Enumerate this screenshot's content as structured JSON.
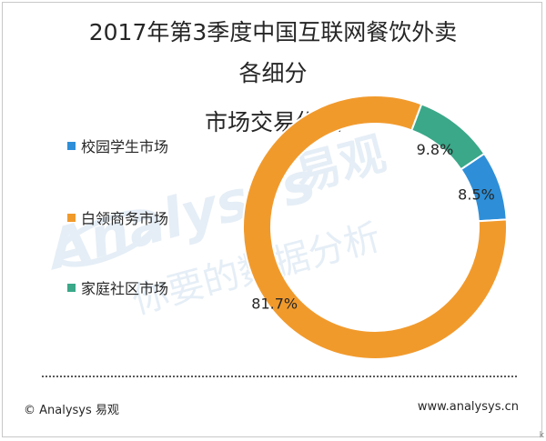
{
  "chart_data": {
    "type": "pie",
    "donut": true,
    "title_lines": [
      "2017年第3季度中国互联网餐饮外卖",
      "各细分",
      "市场交易份额"
    ],
    "categories": [
      "校园学生市场",
      "白领商务市场",
      "家庭社区市场"
    ],
    "values": [
      8.5,
      81.7,
      9.8
    ],
    "value_labels": [
      "8.5%",
      "81.7%",
      "9.8%"
    ],
    "unit": "%",
    "colors": [
      "#2e8fd8",
      "#f19a2c",
      "#3aa889"
    ],
    "legend_position": "left"
  },
  "watermark": {
    "logo_text": "Analysys 易观",
    "slogan": "你要的数据分析"
  },
  "footer": {
    "left": "© Analysys 易观",
    "right": "www.analysys.cn"
  },
  "corner_mark": "k"
}
